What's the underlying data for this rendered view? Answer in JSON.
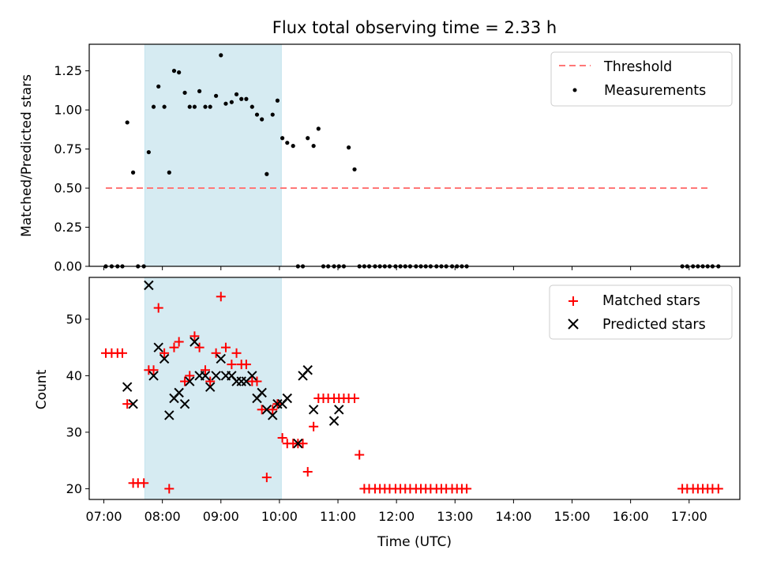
{
  "chart_data": [
    {
      "type": "scatter",
      "title": "Flux total observing time = 2.33 h",
      "ylabel": "Matched/Predicted stars",
      "xlabel": "",
      "xlim": [
        "06:45",
        "17:52"
      ],
      "ylim": [
        0,
        1.42
      ],
      "yticks": [
        "0.00",
        "0.25",
        "0.50",
        "0.75",
        "1.00",
        "1.25"
      ],
      "shaded_span": [
        "07:42",
        "10:02"
      ],
      "legend": {
        "position": "top-right",
        "entries": [
          "Threshold",
          "Measurements"
        ]
      },
      "series": [
        {
          "name": "Threshold",
          "kind": "dashed-line",
          "color": "#ff7777",
          "x": [
            "07:02",
            "17:20"
          ],
          "y": [
            0.5,
            0.5
          ]
        },
        {
          "name": "Measurements",
          "kind": "dot",
          "color": "#000000",
          "x": [
            "07:02",
            "07:08",
            "07:14",
            "07:19",
            "07:24",
            "07:30",
            "07:35",
            "07:41",
            "07:46",
            "07:51",
            "07:56",
            "08:02",
            "08:07",
            "08:12",
            "08:17",
            "08:23",
            "08:28",
            "08:33",
            "08:38",
            "08:44",
            "08:49",
            "08:55",
            "09:00",
            "09:05",
            "09:11",
            "09:16",
            "09:21",
            "09:26",
            "09:32",
            "09:37",
            "09:42",
            "09:47",
            "09:53",
            "09:58",
            "10:03",
            "10:08",
            "10:14",
            "10:19",
            "10:24",
            "10:29",
            "10:35",
            "10:40",
            "10:45",
            "10:50",
            "10:56",
            "11:01",
            "11:06",
            "11:11",
            "11:17",
            "11:22",
            "11:27",
            "11:32",
            "11:38",
            "11:43",
            "11:48",
            "11:53",
            "11:59",
            "12:04",
            "12:09",
            "12:14",
            "12:20",
            "12:25",
            "12:30",
            "12:35",
            "12:41",
            "12:46",
            "12:51",
            "12:57",
            "13:02",
            "13:07",
            "13:12",
            "16:53",
            "16:58",
            "17:04",
            "17:09",
            "17:14",
            "17:19",
            "17:24",
            "17:30"
          ],
          "y": [
            0,
            0,
            0,
            0,
            0.92,
            0.6,
            0,
            0,
            0.73,
            1.02,
            1.15,
            1.02,
            0.6,
            1.25,
            1.24,
            1.11,
            1.02,
            1.02,
            1.12,
            1.02,
            1.02,
            1.09,
            1.35,
            1.04,
            1.05,
            1.1,
            1.07,
            1.07,
            1.02,
            0.97,
            0.94,
            0.59,
            0.97,
            1.06,
            0.82,
            0.79,
            0.77,
            0,
            0,
            0.82,
            0.77,
            0.88,
            0,
            0,
            0,
            0,
            0,
            0.76,
            0.62,
            0,
            0,
            0,
            0,
            0,
            0,
            0,
            0,
            0,
            0,
            0,
            0,
            0,
            0,
            0,
            0,
            0,
            0,
            0,
            0,
            0,
            0,
            0,
            0,
            0,
            0,
            0,
            0,
            0,
            0
          ]
        }
      ]
    },
    {
      "type": "scatter",
      "title": "",
      "ylabel": "Count",
      "xlabel": "Time (UTC)",
      "xlim": [
        "06:45",
        "17:52"
      ],
      "ylim": [
        18.1,
        57.4
      ],
      "xticks": [
        "07:00",
        "08:00",
        "09:00",
        "10:00",
        "11:00",
        "12:00",
        "13:00",
        "14:00",
        "15:00",
        "16:00",
        "17:00"
      ],
      "yticks": [
        "20",
        "30",
        "40",
        "50"
      ],
      "shaded_span": [
        "07:42",
        "10:02"
      ],
      "legend": {
        "position": "top-right",
        "entries": [
          "Matched stars",
          "Predicted stars"
        ]
      },
      "series": [
        {
          "name": "Matched stars",
          "marker": "plus",
          "color": "#ff0000",
          "x": [
            "07:02",
            "07:08",
            "07:14",
            "07:19",
            "07:24",
            "07:30",
            "07:35",
            "07:41",
            "07:46",
            "07:51",
            "07:56",
            "08:02",
            "08:07",
            "08:12",
            "08:17",
            "08:23",
            "08:28",
            "08:33",
            "08:38",
            "08:44",
            "08:49",
            "08:55",
            "09:00",
            "09:05",
            "09:11",
            "09:16",
            "09:21",
            "09:26",
            "09:32",
            "09:37",
            "09:42",
            "09:47",
            "09:53",
            "09:58",
            "10:03",
            "10:08",
            "10:14",
            "10:19",
            "10:24",
            "10:29",
            "10:35",
            "10:40",
            "10:45",
            "10:50",
            "10:56",
            "11:01",
            "11:06",
            "11:11",
            "11:17",
            "11:22",
            "11:27",
            "11:32",
            "11:38",
            "11:43",
            "11:48",
            "11:53",
            "11:59",
            "12:04",
            "12:09",
            "12:14",
            "12:20",
            "12:25",
            "12:30",
            "12:35",
            "12:41",
            "12:46",
            "12:51",
            "12:57",
            "13:02",
            "13:07",
            "13:12",
            "16:53",
            "16:58",
            "17:04",
            "17:09",
            "17:14",
            "17:19",
            "17:24",
            "17:30"
          ],
          "y": [
            44,
            44,
            44,
            44,
            35,
            21,
            21,
            21,
            41,
            41,
            52,
            44,
            20,
            45,
            46,
            39,
            40,
            47,
            45,
            41,
            39,
            44,
            54,
            45,
            42,
            44,
            42,
            42,
            39,
            39,
            34,
            22,
            34,
            35,
            29,
            28,
            28,
            28,
            28,
            23,
            31,
            36,
            36,
            36,
            36,
            36,
            36,
            36,
            36,
            26,
            20,
            20,
            20,
            20,
            20,
            20,
            20,
            20,
            20,
            20,
            20,
            20,
            20,
            20,
            20,
            20,
            20,
            20,
            20,
            20,
            20,
            20,
            20,
            20,
            20,
            20,
            20,
            20,
            20
          ]
        },
        {
          "name": "Predicted stars",
          "marker": "x",
          "color": "#000000",
          "x": [
            "07:24",
            "07:30",
            "07:46",
            "07:51",
            "07:56",
            "08:02",
            "08:07",
            "08:12",
            "08:17",
            "08:23",
            "08:28",
            "08:33",
            "08:38",
            "08:44",
            "08:49",
            "08:55",
            "09:00",
            "09:05",
            "09:11",
            "09:16",
            "09:21",
            "09:26",
            "09:32",
            "09:37",
            "09:42",
            "09:47",
            "09:53",
            "09:58",
            "10:03",
            "10:08",
            "10:19",
            "10:24",
            "10:29",
            "10:35",
            "10:56",
            "11:01"
          ],
          "y": [
            38,
            35,
            56,
            40,
            45,
            43,
            33,
            36,
            37,
            35,
            39,
            46,
            40,
            40,
            38,
            40,
            43,
            40,
            40,
            39,
            39,
            39,
            40,
            36,
            37,
            34,
            33,
            35,
            35,
            36,
            28,
            40,
            41,
            34,
            32,
            34
          ]
        }
      ]
    }
  ]
}
